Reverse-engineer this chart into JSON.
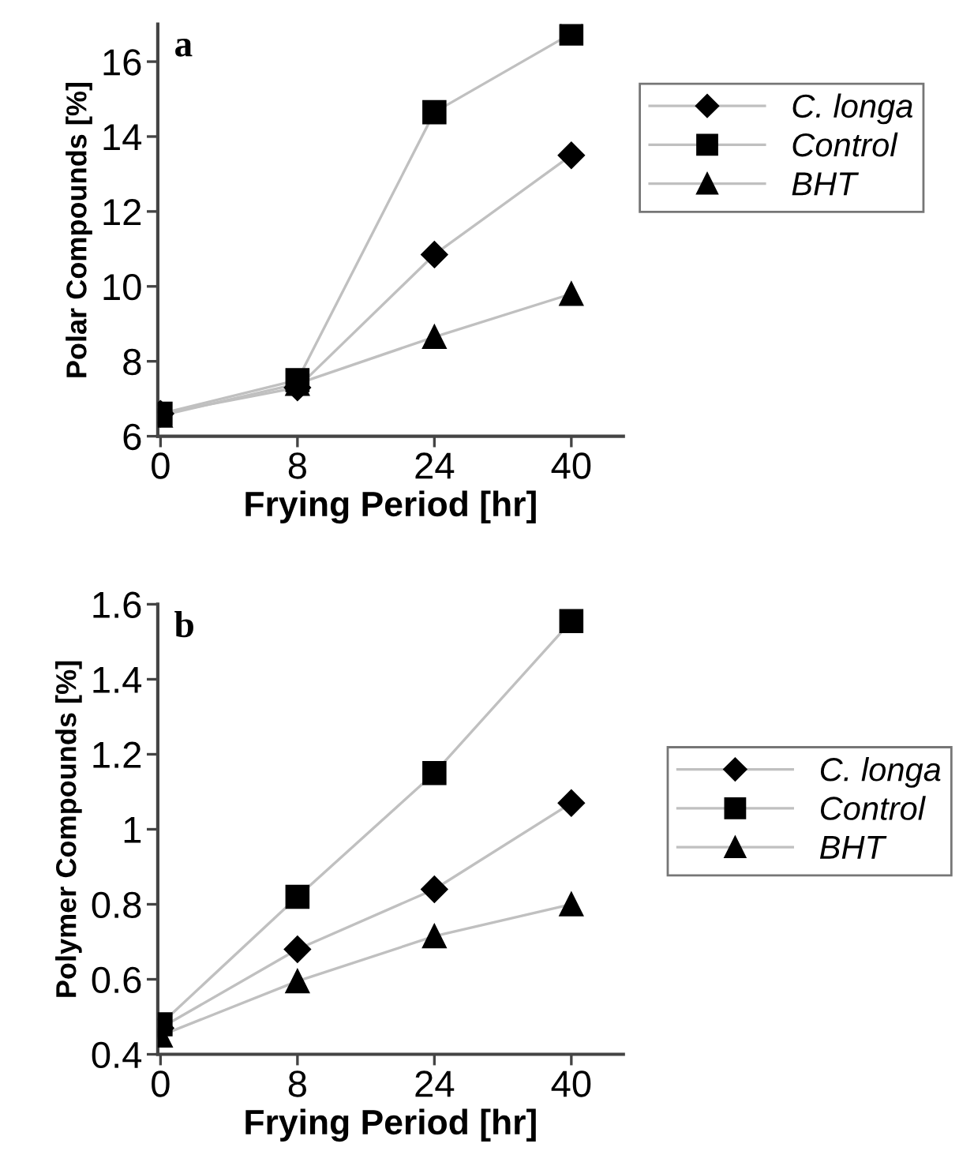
{
  "chart_data": [
    {
      "type": "line",
      "title": "a",
      "xlabel": "Frying Period [hr]",
      "ylabel": "Polar Compounds [%]",
      "categories": [
        "0",
        "8",
        "24",
        "40"
      ],
      "ylim": [
        6,
        17
      ],
      "yticks": [
        6,
        8,
        10,
        12,
        14,
        16
      ],
      "legend": "right",
      "grid": false,
      "series": [
        {
          "name": "C. longa",
          "color": "#000000",
          "marker": "diamond",
          "values": [
            6.6,
            7.3,
            10.85,
            13.5
          ]
        },
        {
          "name": "Control",
          "color": "#000000",
          "marker": "square",
          "values": [
            6.6,
            7.5,
            14.65,
            16.75
          ]
        },
        {
          "name": "BHT",
          "color": "#000000",
          "marker": "triangle",
          "values": [
            6.55,
            7.4,
            8.65,
            9.8
          ]
        }
      ]
    },
    {
      "type": "line",
      "title": "b",
      "xlabel": "Frying Period [hr]",
      "ylabel": "Polymer Compounds [%]",
      "categories": [
        "0",
        "8",
        "24",
        "40"
      ],
      "ylim": [
        0.4,
        1.6
      ],
      "yticks": [
        {
          "value": 0.4,
          "label": "0.4"
        },
        {
          "value": 0.6,
          "label": "0.6"
        },
        {
          "value": 0.8,
          "label": "0.8"
        },
        {
          "value": 1.0,
          "label": "1"
        },
        {
          "value": 1.2,
          "label": "1.2"
        },
        {
          "value": 1.4,
          "label": "1.4"
        },
        {
          "value": 1.6,
          "label": "1.6"
        }
      ],
      "legend": "right",
      "grid": false,
      "series": [
        {
          "name": "C. longa",
          "color": "#000000",
          "marker": "diamond",
          "values": [
            0.47,
            0.68,
            0.84,
            1.07
          ]
        },
        {
          "name": "Control",
          "color": "#000000",
          "marker": "square",
          "values": [
            0.48,
            0.82,
            1.15,
            1.555
          ]
        },
        {
          "name": "BHT",
          "color": "#000000",
          "marker": "triangle",
          "values": [
            0.45,
            0.595,
            0.715,
            0.8
          ]
        }
      ]
    }
  ]
}
